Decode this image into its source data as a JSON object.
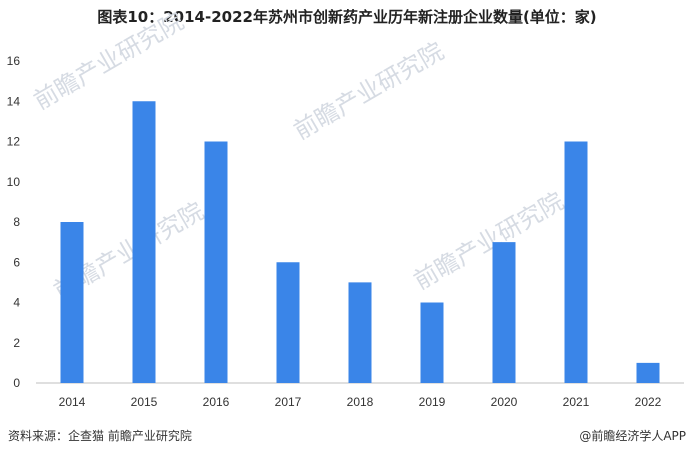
{
  "title": "图表10：2014-2022年苏州市创新药产业历年新注册企业数量(单位：家)",
  "footer": {
    "source": "资料来源：企查猫 前瞻产业研究院",
    "brand": "@前瞻经济学人APP"
  },
  "watermark": {
    "text": "前瞻产业研究院"
  },
  "colors": {
    "bar": "#3a85e8",
    "axis": "#bfbfbf"
  },
  "chart_data": {
    "type": "bar",
    "title": "图表10：2014-2022年苏州市创新药产业历年新注册企业数量(单位：家)",
    "xlabel": "",
    "ylabel": "",
    "categories": [
      "2014",
      "2015",
      "2016",
      "2017",
      "2018",
      "2019",
      "2020",
      "2021",
      "2022"
    ],
    "values": [
      8,
      14,
      12,
      6,
      5,
      4,
      7,
      12,
      1
    ],
    "ylim": [
      0,
      16
    ],
    "yticks": [
      0,
      2,
      4,
      6,
      8,
      10,
      12,
      14,
      16
    ],
    "grid": false,
    "legend": "none"
  }
}
